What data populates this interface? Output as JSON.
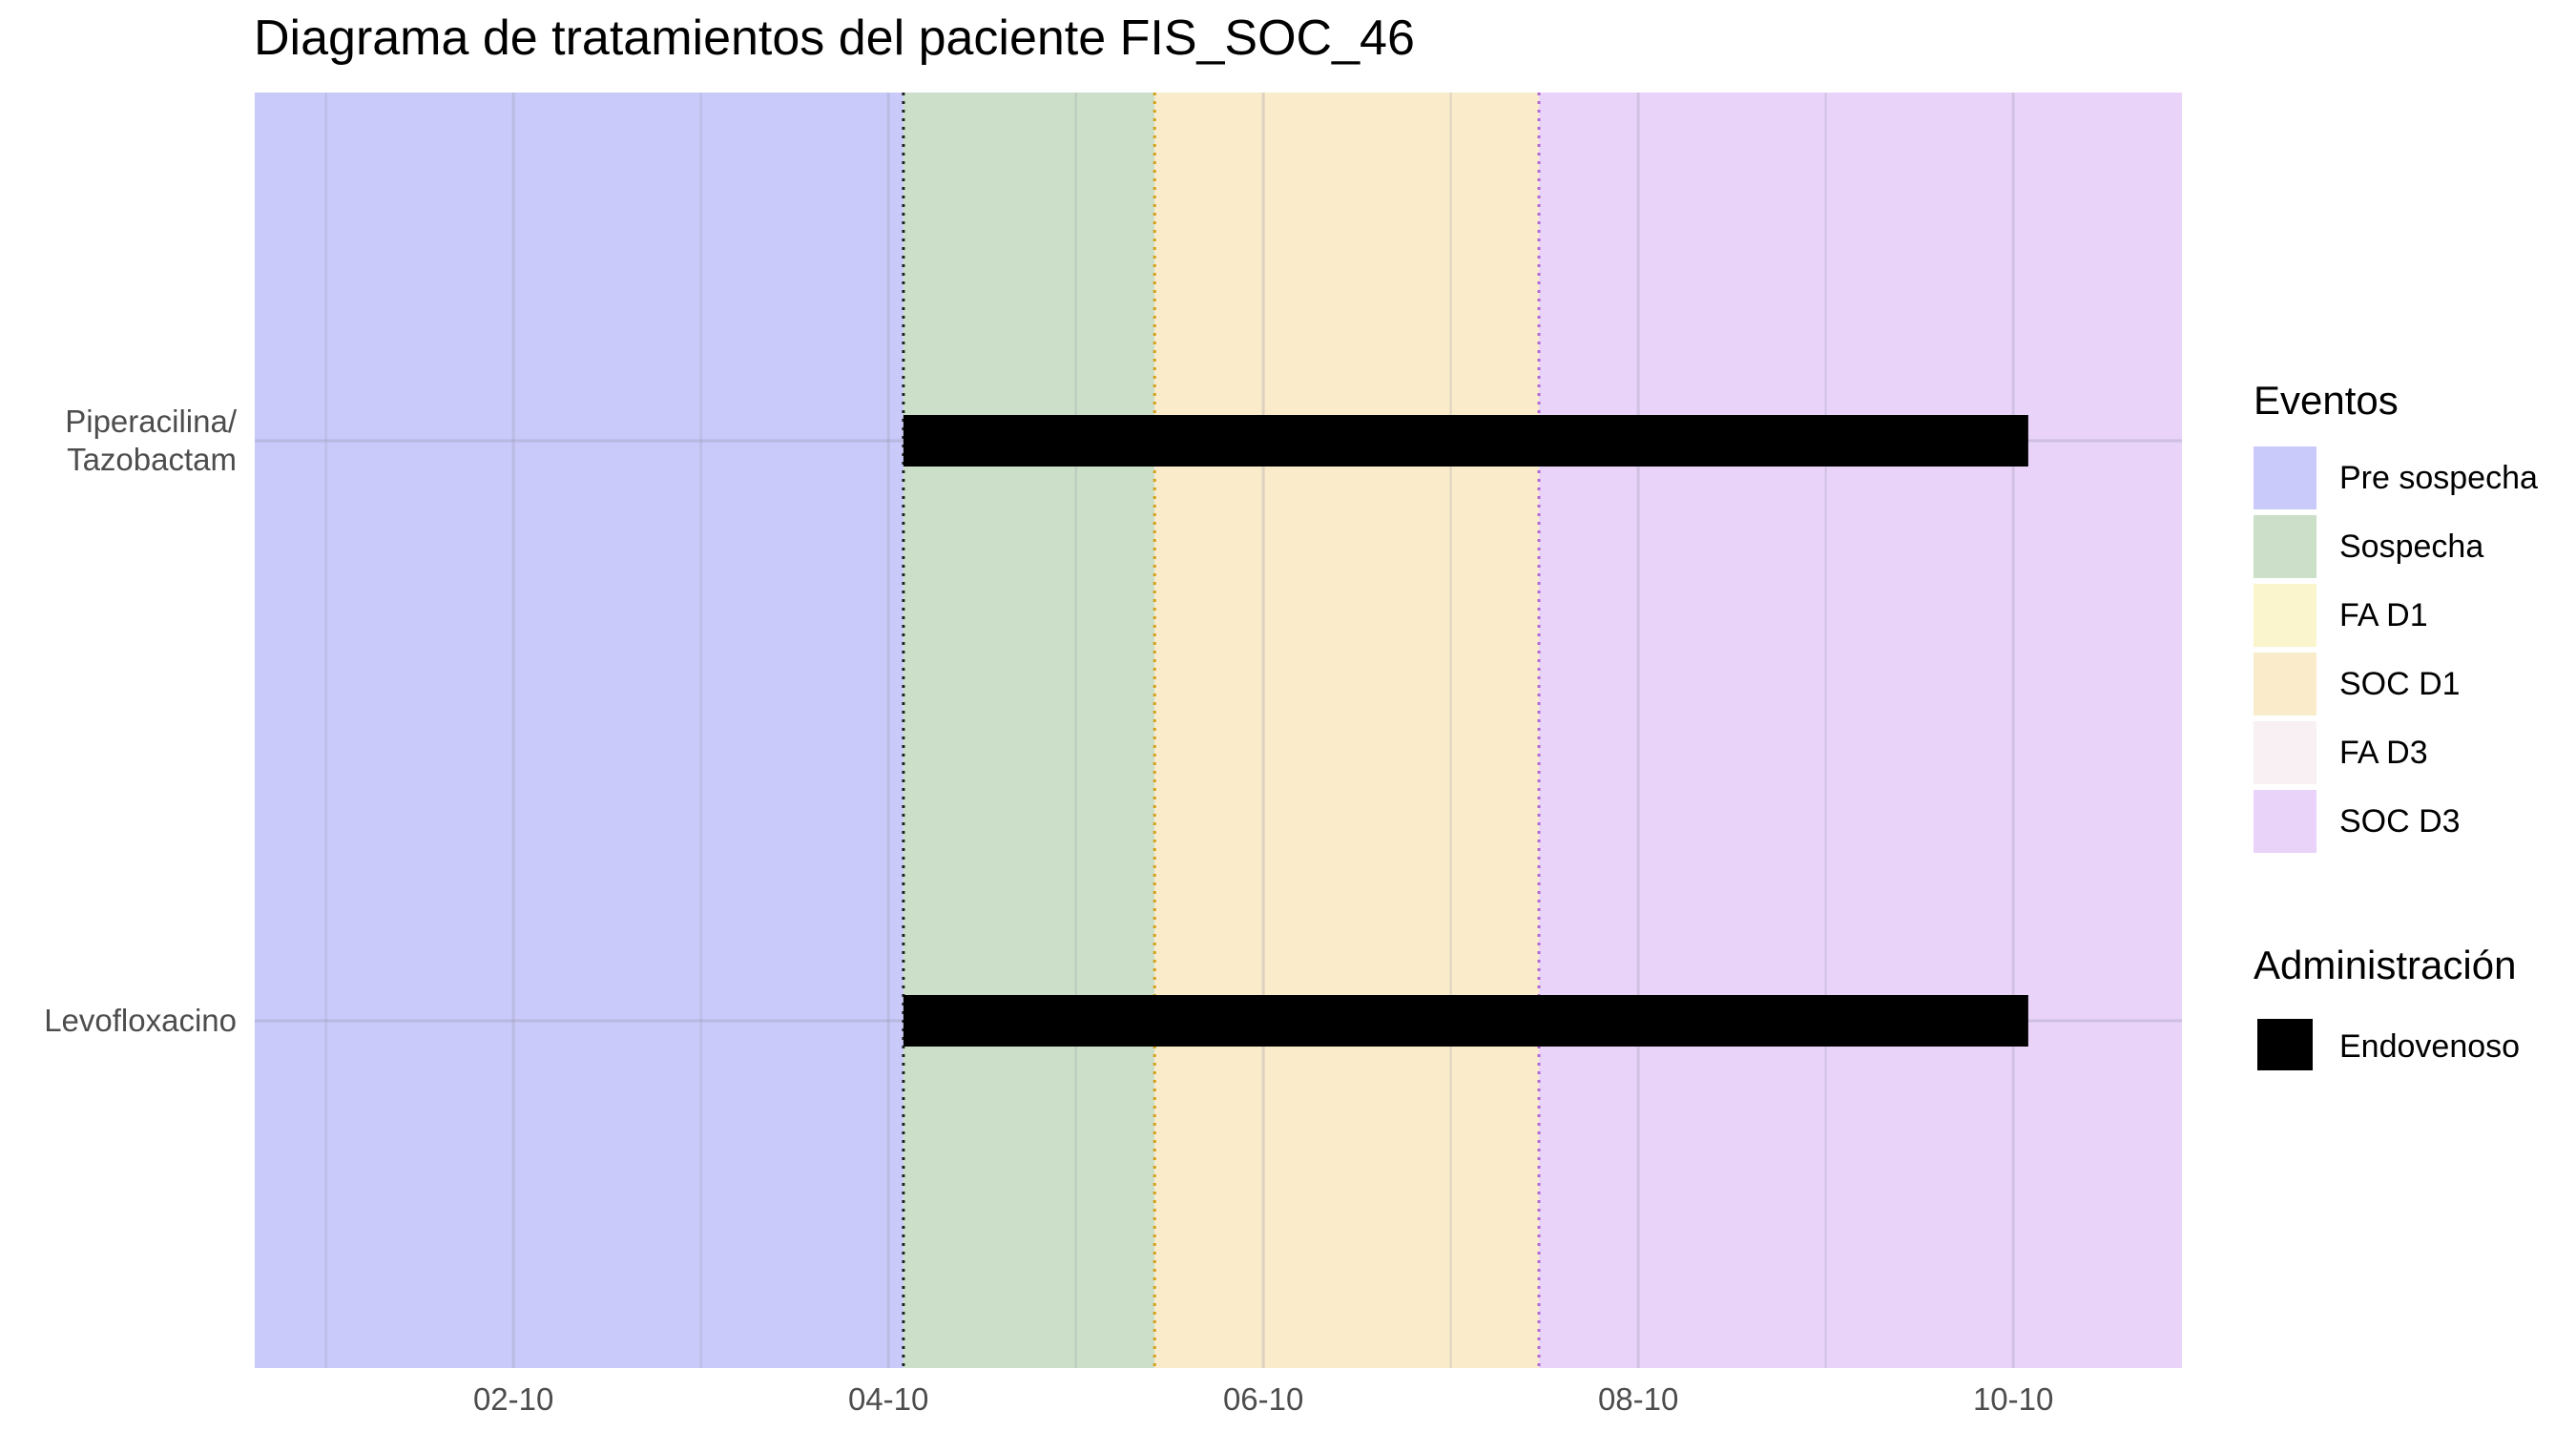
{
  "chart_data": {
    "type": "timeline",
    "title": "Diagrama de tratamientos del paciente FIS_SOC_46",
    "xlabel": "",
    "ylabel": "",
    "x_ticks": [
      "02-10",
      "04-10",
      "06-10",
      "08-10",
      "10-10"
    ],
    "x_range": [
      0.62,
      10.9
    ],
    "grid": true,
    "legend_position": "right",
    "categories": [
      "Piperacilina/\nTazobactam",
      "Levofloxacino"
    ],
    "category_labels": [
      [
        "Piperacilina/",
        "Tazobactam"
      ],
      [
        "Levofloxacino"
      ]
    ],
    "event_periods": [
      {
        "name": "Pre sospecha",
        "start": 0.62,
        "end": 4.08,
        "color": "#c9c9fa"
      },
      {
        "name": "Sospecha",
        "start": 4.08,
        "end": 5.42,
        "color": "#cbdfc9"
      },
      {
        "name": "SOC D1",
        "start": 5.42,
        "end": 7.47,
        "color": "#faebca"
      },
      {
        "name": "SOC D3",
        "start": 7.47,
        "end": 10.9,
        "color": "#e9d3f9"
      }
    ],
    "event_markers": [
      {
        "x": 4.08,
        "color": "#222222"
      },
      {
        "x": 5.42,
        "color": "#d4a017"
      },
      {
        "x": 7.47,
        "color": "#b06ad6"
      }
    ],
    "series": [
      {
        "name": "Endovenoso",
        "color": "#000000",
        "bars": [
          {
            "category": "Piperacilina/\nTazobactam",
            "start": 4.08,
            "end": 10.08
          },
          {
            "category": "Levofloxacino",
            "start": 4.08,
            "end": 10.08
          }
        ]
      }
    ]
  },
  "legend": {
    "events_title": "Eventos",
    "events": [
      {
        "label": "Pre sospecha",
        "color": "#c9c9fa"
      },
      {
        "label": "Sospecha",
        "color": "#cbdfc9"
      },
      {
        "label": "FA D1",
        "color": "#faf5cc"
      },
      {
        "label": "SOC D1",
        "color": "#faebca"
      },
      {
        "label": "FA D3",
        "color": "#f8f0f3"
      },
      {
        "label": "SOC D3",
        "color": "#e9d3f9"
      }
    ],
    "admin_title": "Administración",
    "admin": [
      {
        "label": "Endovenoso",
        "color": "#000000"
      }
    ]
  }
}
